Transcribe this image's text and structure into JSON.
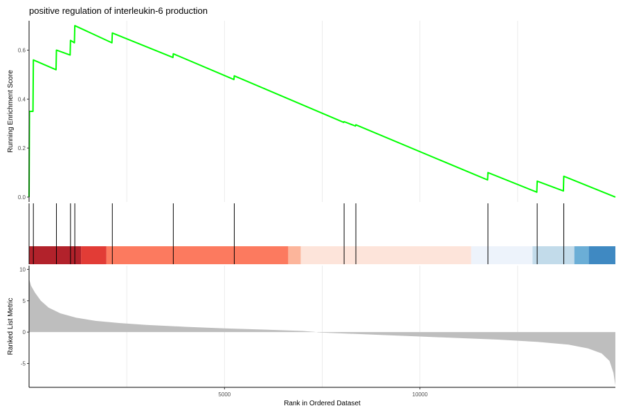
{
  "chart_data": {
    "type": "line",
    "title": "positive regulation of interleukin-6 production",
    "xlabel": "Rank in Ordered Dataset",
    "xlim": [
      0,
      15000
    ],
    "x_ticks": [
      5000,
      10000
    ],
    "grid": true,
    "legend": "none",
    "panels": [
      {
        "name": "running-enrichment",
        "ylabel": "Running Enrichment Score",
        "ylim": [
          -0.02,
          0.72
        ],
        "y_ticks": [
          0.0,
          0.2,
          0.4,
          0.6
        ],
        "series": [
          {
            "color": "#00ff00",
            "points": [
              [
                0,
                0.0
              ],
              [
                10,
                0.35
              ],
              [
                100,
                0.35
              ],
              [
                110,
                0.56
              ],
              [
                690,
                0.52
              ],
              [
                700,
                0.6
              ],
              [
                1050,
                0.58
              ],
              [
                1060,
                0.64
              ],
              [
                1160,
                0.63
              ],
              [
                1170,
                0.7
              ],
              [
                2120,
                0.63
              ],
              [
                2130,
                0.67
              ],
              [
                3680,
                0.57
              ],
              [
                3690,
                0.585
              ],
              [
                5240,
                0.48
              ],
              [
                5250,
                0.495
              ],
              [
                8050,
                0.305
              ],
              [
                8060,
                0.308
              ],
              [
                8350,
                0.29
              ],
              [
                8360,
                0.295
              ],
              [
                11730,
                0.07
              ],
              [
                11740,
                0.1
              ],
              [
                12990,
                0.02
              ],
              [
                13000,
                0.065
              ],
              [
                13670,
                0.025
              ],
              [
                13680,
                0.085
              ],
              [
                15000,
                0.0
              ]
            ]
          }
        ]
      },
      {
        "name": "gene-hits",
        "hit_positions": [
          0,
          110,
          700,
          1060,
          1170,
          2130,
          3690,
          5250,
          8060,
          8360,
          11740,
          13000,
          13680
        ],
        "hit_color": "#000000",
        "color_bands": [
          {
            "start": 0,
            "end": 1330,
            "color": "#b2222b"
          },
          {
            "start": 1330,
            "end": 1980,
            "color": "#e23c36"
          },
          {
            "start": 1980,
            "end": 6630,
            "color": "#fc7a5f"
          },
          {
            "start": 6630,
            "end": 6950,
            "color": "#fcb59b"
          },
          {
            "start": 6950,
            "end": 11310,
            "color": "#fde4da"
          },
          {
            "start": 11310,
            "end": 12880,
            "color": "#edf3fb"
          },
          {
            "start": 12880,
            "end": 13950,
            "color": "#c2dbea"
          },
          {
            "start": 13950,
            "end": 14320,
            "color": "#6baed6"
          },
          {
            "start": 14320,
            "end": 15000,
            "color": "#3f89c2"
          }
        ]
      },
      {
        "name": "ranked-list",
        "ylabel": "Ranked List Metric",
        "ylim": [
          -8.8,
          10.6
        ],
        "y_ticks": [
          -5,
          0,
          5,
          10
        ],
        "series": [
          {
            "color": "#bebebe",
            "type": "area",
            "points": [
              [
                0,
                8.5
              ],
              [
                50,
                7.4
              ],
              [
                150,
                6.3
              ],
              [
                300,
                5.0
              ],
              [
                500,
                3.9
              ],
              [
                800,
                3.0
              ],
              [
                1200,
                2.3
              ],
              [
                1700,
                1.8
              ],
              [
                2300,
                1.45
              ],
              [
                3000,
                1.15
              ],
              [
                4000,
                0.85
              ],
              [
                5000,
                0.6
              ],
              [
                6000,
                0.4
              ],
              [
                7000,
                0.18
              ],
              [
                7300,
                0.05
              ],
              [
                7400,
                -0.05
              ],
              [
                8000,
                -0.2
              ],
              [
                9000,
                -0.45
              ],
              [
                10000,
                -0.7
              ],
              [
                11000,
                -0.95
              ],
              [
                12000,
                -1.2
              ],
              [
                13000,
                -1.55
              ],
              [
                13800,
                -2.0
              ],
              [
                14300,
                -2.6
              ],
              [
                14650,
                -3.4
              ],
              [
                14850,
                -4.6
              ],
              [
                14950,
                -6.5
              ],
              [
                15000,
                -8.5
              ]
            ]
          }
        ]
      }
    ]
  }
}
